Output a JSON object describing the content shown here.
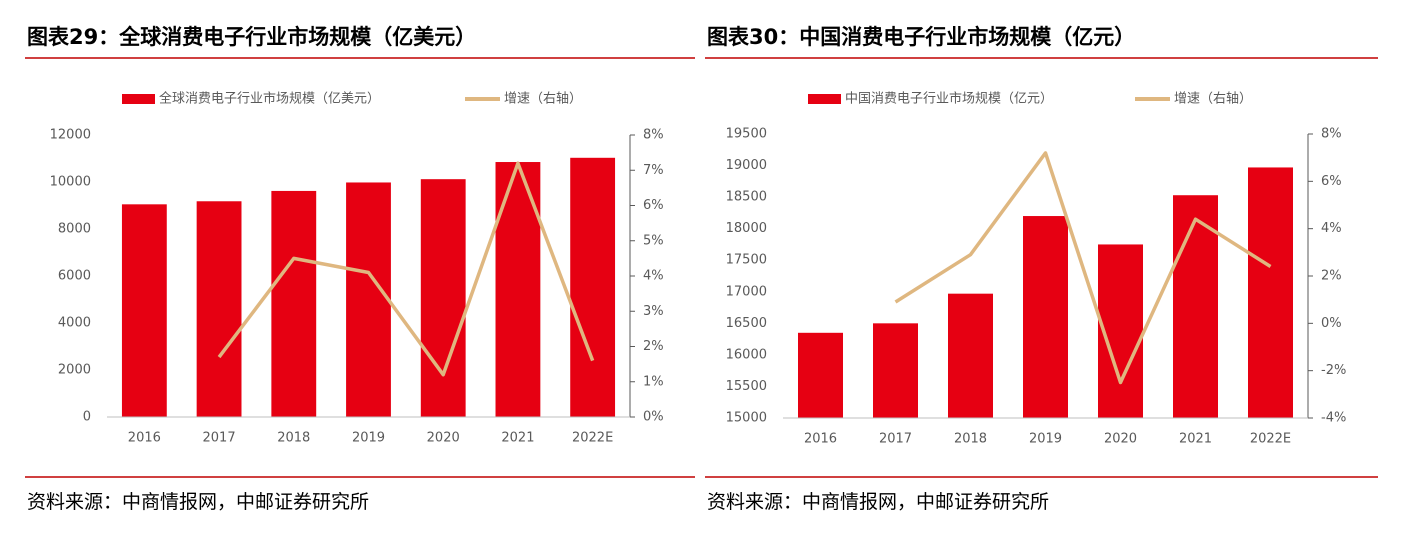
{
  "chart_data": [
    {
      "type": "bar",
      "title": "图表29：全球消费电子行业市场规模（亿美元）",
      "categories": [
        "2016",
        "2017",
        "2018",
        "2019",
        "2020",
        "2021",
        "2022E"
      ],
      "series": [
        {
          "name": "全球消费电子行业市场规模（亿美元）",
          "color": "#e60012",
          "type": "bar",
          "values": [
            9050,
            9180,
            9620,
            9980,
            10120,
            10850,
            11030
          ]
        },
        {
          "name": "增速（右轴）",
          "color": "#dfb780",
          "type": "line",
          "axis": "y2",
          "values": [
            null,
            1.7,
            4.5,
            4.1,
            1.2,
            7.2,
            1.6
          ]
        }
      ],
      "ylim": [
        0,
        12000
      ],
      "yticks": [
        0,
        2000,
        4000,
        6000,
        8000,
        10000,
        12000
      ],
      "y2lim": [
        0,
        8
      ],
      "y2ticks": [
        {
          "value": 0,
          "label": "0%"
        },
        {
          "value": 1,
          "label": "1%"
        },
        {
          "value": 2,
          "label": "2%"
        },
        {
          "value": 3,
          "label": "3%"
        },
        {
          "value": 4,
          "label": "4%"
        },
        {
          "value": 5,
          "label": "5%"
        },
        {
          "value": 6,
          "label": "6%"
        },
        {
          "value": 7,
          "label": "7%"
        },
        {
          "value": 8,
          "label": "8%"
        }
      ],
      "source": "资料来源：中商情报网，中邮证券研究所"
    },
    {
      "type": "bar",
      "title": "图表30：中国消费电子行业市场规模（亿元）",
      "categories": [
        "2016",
        "2017",
        "2018",
        "2019",
        "2020",
        "2021",
        "2022E"
      ],
      "series": [
        {
          "name": "中国消费电子行业市场规模（亿元）",
          "color": "#e60012",
          "type": "bar",
          "values": [
            16350,
            16500,
            16970,
            18200,
            17750,
            18530,
            18970
          ]
        },
        {
          "name": "增速（右轴）",
          "color": "#dfb780",
          "type": "line",
          "axis": "y2",
          "values": [
            null,
            0.9,
            2.9,
            7.2,
            -2.5,
            4.4,
            2.4
          ]
        }
      ],
      "ylim": [
        15000,
        19500
      ],
      "yticks": [
        15000,
        15500,
        16000,
        16500,
        17000,
        17500,
        18000,
        18500,
        19000,
        19500
      ],
      "y2lim": [
        -4,
        8
      ],
      "y2ticks": [
        {
          "value": -4,
          "label": "-4%"
        },
        {
          "value": -2,
          "label": "-2%"
        },
        {
          "value": 0,
          "label": "0%"
        },
        {
          "value": 2,
          "label": "2%"
        },
        {
          "value": 4,
          "label": "4%"
        },
        {
          "value": 6,
          "label": "6%"
        },
        {
          "value": 8,
          "label": "8%"
        }
      ],
      "source": "资料来源：中商情报网，中邮证券研究所"
    }
  ]
}
